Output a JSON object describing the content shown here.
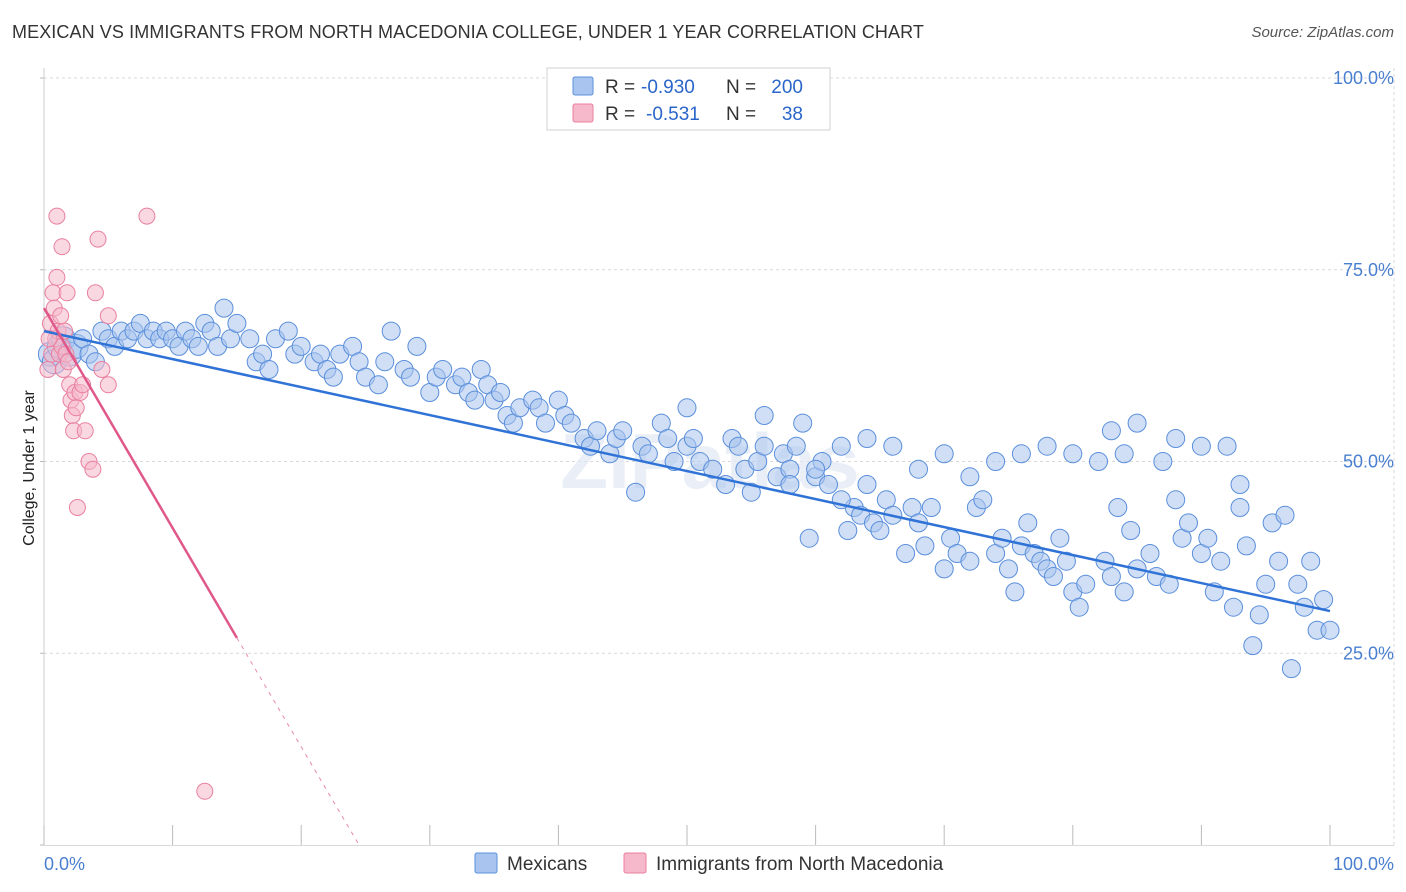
{
  "title": "MEXICAN VS IMMIGRANTS FROM NORTH MACEDONIA COLLEGE, UNDER 1 YEAR CORRELATION CHART",
  "source": "Source: ZipAtlas.com",
  "colors": {
    "blue_fill": "#a9c5ef",
    "blue_stroke": "#5b8fdb",
    "blue_line": "#2f73d6",
    "pink_fill": "#f6b8cb",
    "pink_stroke": "#e9809f",
    "pink_line": "#e0588a",
    "grid": "#d9d9d9",
    "axis_text": "#4a7fd0"
  },
  "chart_data": {
    "type": "scatter",
    "title": "MEXICAN VS IMMIGRANTS FROM NORTH MACEDONIA COLLEGE, UNDER 1 YEAR CORRELATION CHART",
    "xlabel": "",
    "ylabel": "College, Under 1 year",
    "xlim": [
      0,
      100
    ],
    "ylim": [
      0,
      100
    ],
    "x_tick_labels": [
      "0.0%",
      "100.0%"
    ],
    "y_tick_labels": [
      "100.0%",
      "75.0%",
      "50.0%",
      "25.0%"
    ],
    "y_ticks": [
      100,
      75,
      50,
      25
    ],
    "grid": true,
    "legend_position": "top-center",
    "watermark": "ZIPatlas",
    "legend": [
      {
        "name": "Mexicans",
        "r_label": "R =",
        "r_value": "-0.930",
        "n_label": "N =",
        "n_value": "200"
      },
      {
        "name": "Immigrants from North Macedonia",
        "r_label": "R =",
        "r_value": "-0.531",
        "n_label": "N =",
        "n_value": "38"
      }
    ],
    "series": [
      {
        "name": "Mexicans",
        "trend": {
          "x": [
            0,
            100
          ],
          "y": [
            67.0,
            30.5
          ],
          "dashed_extension": null
        },
        "points": [
          [
            0.5,
            64
          ],
          [
            0.8,
            63
          ],
          [
            1.2,
            65
          ],
          [
            1.5,
            66
          ],
          [
            2,
            64
          ],
          [
            2.5,
            65
          ],
          [
            3,
            66
          ],
          [
            3.5,
            64
          ],
          [
            4,
            63
          ],
          [
            4.5,
            67
          ],
          [
            5,
            66
          ],
          [
            5.5,
            65
          ],
          [
            6,
            67
          ],
          [
            6.5,
            66
          ],
          [
            7,
            67
          ],
          [
            7.5,
            68
          ],
          [
            8,
            66
          ],
          [
            8.5,
            67
          ],
          [
            9,
            66
          ],
          [
            9.5,
            67
          ],
          [
            10,
            66
          ],
          [
            10.5,
            65
          ],
          [
            11,
            67
          ],
          [
            11.5,
            66
          ],
          [
            12,
            65
          ],
          [
            12.5,
            68
          ],
          [
            13,
            67
          ],
          [
            13.5,
            65
          ],
          [
            14,
            70
          ],
          [
            14.5,
            66
          ],
          [
            15,
            68
          ],
          [
            16,
            66
          ],
          [
            16.5,
            63
          ],
          [
            17,
            64
          ],
          [
            17.5,
            62
          ],
          [
            18,
            66
          ],
          [
            19,
            67
          ],
          [
            19.5,
            64
          ],
          [
            20,
            65
          ],
          [
            21,
            63
          ],
          [
            21.5,
            64
          ],
          [
            22,
            62
          ],
          [
            22.5,
            61
          ],
          [
            23,
            64
          ],
          [
            24,
            65
          ],
          [
            24.5,
            63
          ],
          [
            25,
            61
          ],
          [
            26,
            60
          ],
          [
            26.5,
            63
          ],
          [
            27,
            67
          ],
          [
            28,
            62
          ],
          [
            28.5,
            61
          ],
          [
            29,
            65
          ],
          [
            30,
            59
          ],
          [
            30.5,
            61
          ],
          [
            31,
            62
          ],
          [
            32,
            60
          ],
          [
            32.5,
            61
          ],
          [
            33,
            59
          ],
          [
            33.5,
            58
          ],
          [
            34,
            62
          ],
          [
            34.5,
            60
          ],
          [
            35,
            58
          ],
          [
            35.5,
            59
          ],
          [
            36,
            56
          ],
          [
            36.5,
            55
          ],
          [
            37,
            57
          ],
          [
            38,
            58
          ],
          [
            38.5,
            57
          ],
          [
            39,
            55
          ],
          [
            40,
            58
          ],
          [
            40.5,
            56
          ],
          [
            41,
            55
          ],
          [
            42,
            53
          ],
          [
            42.5,
            52
          ],
          [
            43,
            54
          ],
          [
            44,
            51
          ],
          [
            44.5,
            53
          ],
          [
            45,
            54
          ],
          [
            46,
            46
          ],
          [
            46.5,
            52
          ],
          [
            47,
            51
          ],
          [
            48,
            55
          ],
          [
            48.5,
            53
          ],
          [
            49,
            50
          ],
          [
            50,
            52
          ],
          [
            50.5,
            53
          ],
          [
            51,
            50
          ],
          [
            52,
            49
          ],
          [
            53,
            47
          ],
          [
            53.5,
            53
          ],
          [
            54,
            52
          ],
          [
            54.5,
            49
          ],
          [
            55,
            46
          ],
          [
            55.5,
            50
          ],
          [
            56,
            52
          ],
          [
            57,
            48
          ],
          [
            57.5,
            51
          ],
          [
            58,
            49
          ],
          [
            58.5,
            52
          ],
          [
            59,
            55
          ],
          [
            59.5,
            40
          ],
          [
            60,
            48
          ],
          [
            60.5,
            50
          ],
          [
            61,
            47
          ],
          [
            62,
            52
          ],
          [
            62.5,
            41
          ],
          [
            63,
            44
          ],
          [
            63.5,
            43
          ],
          [
            64,
            47
          ],
          [
            64.5,
            42
          ],
          [
            65,
            41
          ],
          [
            65.5,
            45
          ],
          [
            66,
            43
          ],
          [
            67,
            38
          ],
          [
            67.5,
            44
          ],
          [
            68,
            42
          ],
          [
            68.5,
            39
          ],
          [
            69,
            44
          ],
          [
            70,
            36
          ],
          [
            70.5,
            40
          ],
          [
            71,
            38
          ],
          [
            72,
            37
          ],
          [
            72.5,
            44
          ],
          [
            73,
            45
          ],
          [
            74,
            38
          ],
          [
            74.5,
            40
          ],
          [
            75,
            36
          ],
          [
            75.5,
            33
          ],
          [
            76,
            39
          ],
          [
            76.5,
            42
          ],
          [
            77,
            38
          ],
          [
            77.5,
            37
          ],
          [
            78,
            36
          ],
          [
            78.5,
            35
          ],
          [
            79,
            40
          ],
          [
            79.5,
            37
          ],
          [
            80,
            33
          ],
          [
            80.5,
            31
          ],
          [
            81,
            34
          ],
          [
            82,
            50
          ],
          [
            82.5,
            37
          ],
          [
            83,
            35
          ],
          [
            83.5,
            44
          ],
          [
            84,
            33
          ],
          [
            84.5,
            41
          ],
          [
            85,
            36
          ],
          [
            86,
            38
          ],
          [
            86.5,
            35
          ],
          [
            87,
            50
          ],
          [
            87.5,
            34
          ],
          [
            88,
            45
          ],
          [
            88.5,
            40
          ],
          [
            89,
            42
          ],
          [
            90,
            38
          ],
          [
            90.5,
            40
          ],
          [
            91,
            33
          ],
          [
            91.5,
            37
          ],
          [
            92,
            52
          ],
          [
            92.5,
            31
          ],
          [
            93,
            44
          ],
          [
            93.5,
            39
          ],
          [
            94,
            26
          ],
          [
            94.5,
            30
          ],
          [
            95,
            34
          ],
          [
            95.5,
            42
          ],
          [
            96,
            37
          ],
          [
            96.5,
            43
          ],
          [
            97,
            23
          ],
          [
            97.5,
            34
          ],
          [
            98,
            31
          ],
          [
            98.5,
            37
          ],
          [
            99,
            28
          ],
          [
            99.5,
            32
          ],
          [
            100,
            28
          ],
          [
            80,
            51
          ],
          [
            78,
            52
          ],
          [
            72,
            48
          ],
          [
            68,
            49
          ],
          [
            60,
            49
          ],
          [
            56,
            56
          ],
          [
            64,
            53
          ],
          [
            66,
            52
          ],
          [
            70,
            51
          ],
          [
            74,
            50
          ],
          [
            76,
            51
          ],
          [
            84,
            51
          ],
          [
            88,
            53
          ],
          [
            90,
            52
          ],
          [
            93,
            47
          ],
          [
            58,
            47
          ],
          [
            62,
            45
          ],
          [
            85,
            55
          ],
          [
            83,
            54
          ],
          [
            50,
            57
          ]
        ]
      },
      {
        "name": "Immigrants from North Macedonia",
        "trend": {
          "x": [
            0,
            15
          ],
          "y": [
            70,
            27
          ],
          "dashed_extension": {
            "x": [
              15,
              24.5
            ],
            "y": [
              27,
              0
            ]
          }
        },
        "points": [
          [
            0.3,
            62
          ],
          [
            0.5,
            68
          ],
          [
            0.6,
            64
          ],
          [
            0.7,
            72
          ],
          [
            0.8,
            70
          ],
          [
            0.9,
            66
          ],
          [
            1.0,
            74
          ],
          [
            1.1,
            67
          ],
          [
            1.2,
            64
          ],
          [
            1.3,
            69
          ],
          [
            1.4,
            65
          ],
          [
            1.5,
            62
          ],
          [
            1.6,
            67
          ],
          [
            1.7,
            64
          ],
          [
            1.8,
            72
          ],
          [
            1.9,
            63
          ],
          [
            2.0,
            60
          ],
          [
            2.1,
            58
          ],
          [
            2.2,
            56
          ],
          [
            2.3,
            54
          ],
          [
            2.4,
            59
          ],
          [
            2.5,
            57
          ],
          [
            2.6,
            44
          ],
          [
            2.8,
            59
          ],
          [
            3.0,
            60
          ],
          [
            3.2,
            54
          ],
          [
            3.5,
            50
          ],
          [
            3.8,
            49
          ],
          [
            4.0,
            72
          ],
          [
            4.2,
            79
          ],
          [
            4.5,
            62
          ],
          [
            5.0,
            69
          ],
          [
            1.0,
            82
          ],
          [
            1.4,
            78
          ],
          [
            8.0,
            82
          ],
          [
            5.0,
            60
          ],
          [
            12.5,
            7
          ],
          [
            0.4,
            66
          ]
        ]
      }
    ]
  }
}
